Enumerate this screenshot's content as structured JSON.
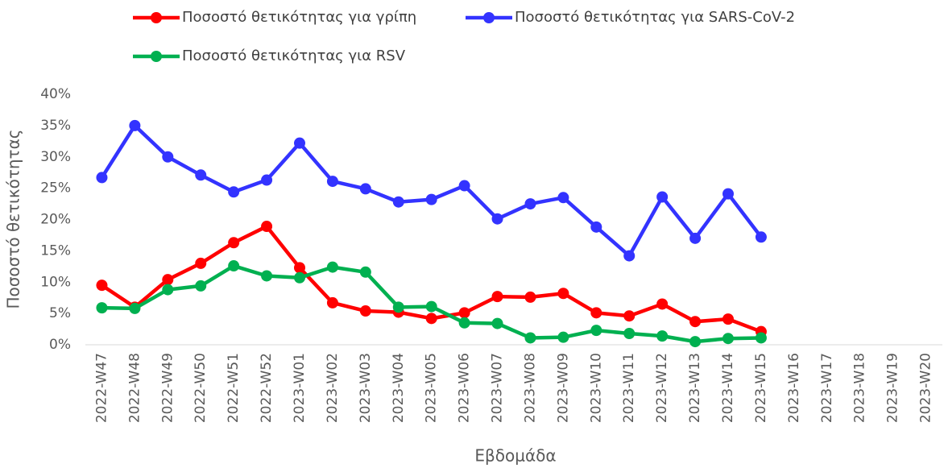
{
  "chart_data": {
    "type": "line",
    "y_label": "Ποσοστό θετικότητας",
    "x_label": "Εβδομάδα",
    "legend": "top",
    "grid": false,
    "categories": [
      "2022-W47",
      "2022-W48",
      "2022-W49",
      "2022-W50",
      "2022-W51",
      "2022-W52",
      "2023-W01",
      "2023-W02",
      "2023-W03",
      "2023-W04",
      "2023-W05",
      "2023-W06",
      "2023-W07",
      "2023-W08",
      "2023-W09",
      "2023-W10",
      "2023-W11",
      "2023-W12",
      "2023-W13",
      "2023-W14",
      "2023-W15",
      "2023-W16",
      "2023-W17",
      "2023-W18",
      "2023-W19",
      "2023-W20"
    ],
    "ylim": [
      0,
      40
    ],
    "yticks": [
      {
        "value": 0,
        "label": "0%"
      },
      {
        "value": 5,
        "label": "5%"
      },
      {
        "value": 10,
        "label": "10%"
      },
      {
        "value": 15,
        "label": "15%"
      },
      {
        "value": 20,
        "label": "20%"
      },
      {
        "value": 25,
        "label": "25%"
      },
      {
        "value": 30,
        "label": "30%"
      },
      {
        "value": 35,
        "label": "35%"
      },
      {
        "value": 40,
        "label": "40%"
      }
    ],
    "series": [
      {
        "name": "Ποσοστό θετικότητας για γρίπη",
        "color": "#ff0000",
        "values": [
          9.5,
          6.0,
          10.4,
          13.0,
          16.3,
          18.9,
          12.3,
          6.7,
          5.4,
          5.2,
          4.2,
          5.1,
          7.7,
          7.6,
          8.2,
          5.1,
          4.6,
          6.5,
          3.7,
          4.1,
          2.1,
          null,
          null,
          null,
          null,
          null
        ]
      },
      {
        "name": "Ποσοστό θετικότητας για SARS-CoV-2",
        "color": "#3333ff",
        "values": [
          26.7,
          35.0,
          30.0,
          27.1,
          24.4,
          26.3,
          32.2,
          26.1,
          24.9,
          22.8,
          23.2,
          25.4,
          20.1,
          22.5,
          23.5,
          18.8,
          14.2,
          23.6,
          17.0,
          24.1,
          17.2,
          null,
          null,
          null,
          null,
          null
        ]
      },
      {
        "name": "Ποσοστό θετικότητας για RSV",
        "color": "#00b050",
        "values": [
          5.9,
          5.8,
          8.8,
          9.4,
          12.6,
          11.0,
          10.7,
          12.4,
          11.6,
          6.0,
          6.1,
          3.5,
          3.4,
          1.1,
          1.2,
          2.3,
          1.8,
          1.4,
          0.5,
          1.0,
          1.1,
          null,
          null,
          null,
          null,
          null
        ]
      }
    ]
  }
}
